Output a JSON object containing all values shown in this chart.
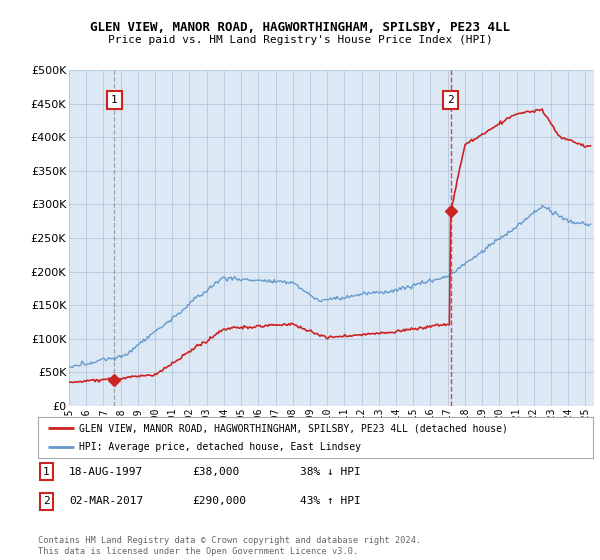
{
  "title": "GLEN VIEW, MANOR ROAD, HAGWORTHINGHAM, SPILSBY, PE23 4LL",
  "subtitle": "Price paid vs. HM Land Registry's House Price Index (HPI)",
  "bg_color": "#dce9f5",
  "plot_bg_color": "#dce9f5",
  "red_color": "#cc2222",
  "blue_color": "#6699cc",
  "grid_color": "#b8cce4",
  "sale1_date": 1997.63,
  "sale1_price": 38000,
  "sale2_date": 2017.17,
  "sale2_price": 290000,
  "xmin": 1995,
  "xmax": 2025.5,
  "ymin": 0,
  "ymax": 500000,
  "ytick_step": 50000,
  "legend_line1": "GLEN VIEW, MANOR ROAD, HAGWORTHINGHAM, SPILSBY, PE23 4LL (detached house)",
  "legend_line2": "HPI: Average price, detached house, East Lindsey",
  "note1_box": "1",
  "note1_date": "18-AUG-1997",
  "note1_price": "£38,000",
  "note1_hpi": "38% ↓ HPI",
  "note2_box": "2",
  "note2_date": "02-MAR-2017",
  "note2_price": "£290,000",
  "note2_hpi": "43% ↑ HPI",
  "footer": "Contains HM Land Registry data © Crown copyright and database right 2024.\nThis data is licensed under the Open Government Licence v3.0."
}
